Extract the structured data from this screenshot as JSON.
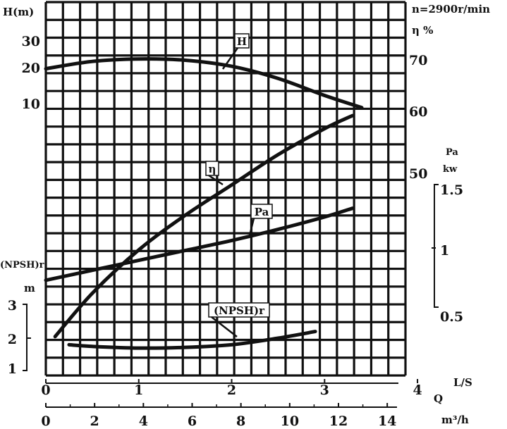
{
  "chart_data": {
    "type": "line",
    "title": "",
    "speed_label": "n=2900r/min",
    "axes": {
      "head": {
        "label": "H(m)",
        "ticks": [
          "10",
          "20",
          "30"
        ]
      },
      "efficiency": {
        "label": "η %",
        "ticks": [
          "50",
          "60",
          "70"
        ]
      },
      "power": {
        "label_top": "Pa",
        "label_bottom": "kw",
        "ticks": [
          "0.5",
          "1",
          "1.5"
        ]
      },
      "npsh": {
        "label": "(NPSH)r",
        "unit": "m",
        "ticks": [
          "1",
          "2",
          "3"
        ]
      },
      "flow_ls": {
        "label": "L/S",
        "ticks": [
          "0",
          "1",
          "2",
          "3",
          "4"
        ],
        "range": [
          0,
          4
        ]
      },
      "flow_m3h": {
        "label_q": "Q",
        "label_unit": "m³/h",
        "ticks": [
          "0",
          "2",
          "4",
          "6",
          "8",
          "10",
          "12",
          "14"
        ],
        "range": [
          0,
          14.4
        ]
      }
    },
    "series": [
      {
        "name": "H",
        "axis": "head",
        "x_ls": [
          0,
          0.5,
          1,
          1.5,
          2,
          2.5,
          3,
          3.4
        ],
        "y": [
          21,
          24,
          25,
          24.5,
          22,
          17,
          10,
          5
        ]
      },
      {
        "name": "η",
        "axis": "efficiency",
        "x_ls": [
          0.1,
          0.5,
          1,
          1.5,
          2,
          2.5,
          3,
          3.3
        ],
        "y": [
          8,
          18,
          28,
          36,
          43,
          50,
          56,
          59
        ]
      },
      {
        "name": "Pa",
        "axis": "power",
        "x_ls": [
          0,
          0.5,
          1,
          1.5,
          2,
          2.5,
          3,
          3.3
        ],
        "y": [
          0.74,
          0.82,
          0.9,
          0.98,
          1.06,
          1.15,
          1.25,
          1.32
        ]
      },
      {
        "name": "(NPSH)r",
        "axis": "npsh",
        "x_ls": [
          0.25,
          0.5,
          1,
          1.5,
          2,
          2.5,
          2.9
        ],
        "y": [
          1.8,
          1.75,
          1.7,
          1.72,
          1.8,
          2.0,
          2.2
        ]
      }
    ],
    "curve_labels": {
      "H": "H",
      "eta": "η",
      "Pa": "Pa",
      "npsh": "(NPSH)r"
    },
    "grid": true
  }
}
